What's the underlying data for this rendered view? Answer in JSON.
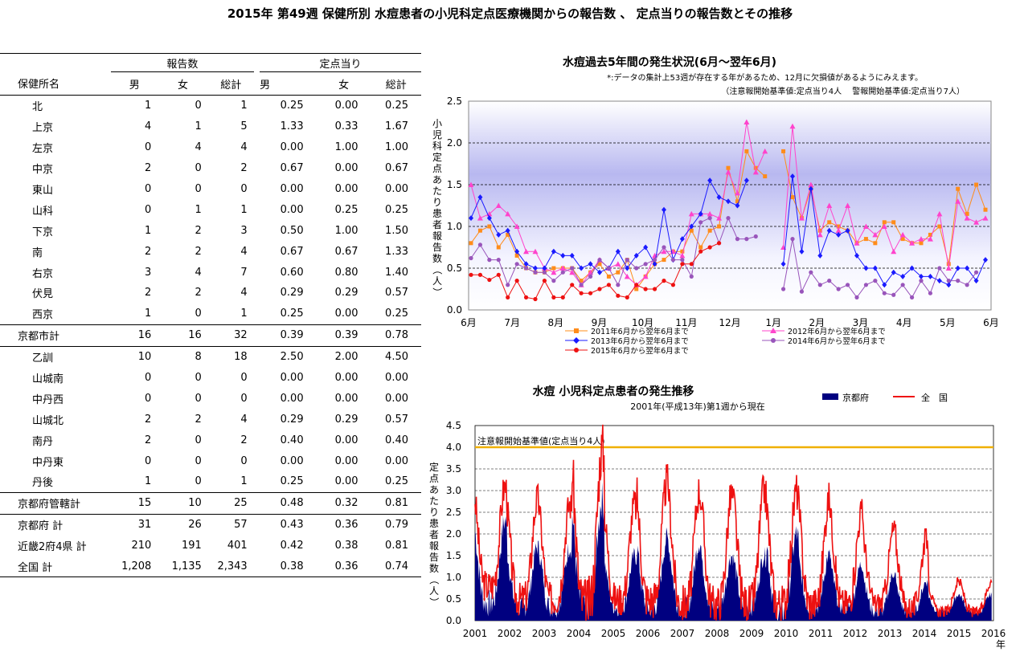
{
  "title": "2015年 第49週 保健所別 水痘患者の小児科定点医療機関からの報告数 、 定点当りの報告数とその推移",
  "table": {
    "group_headers": {
      "reports": "報告数",
      "per_sentinel": "定点当り"
    },
    "columns": [
      "保健所名",
      "男",
      "女",
      "総計",
      "男",
      "女",
      "総計"
    ],
    "rows": [
      {
        "name": "北",
        "values": [
          "1",
          "0",
          "1",
          "0.25",
          "0.00",
          "0.25"
        ],
        "kind": "sub"
      },
      {
        "name": "上京",
        "values": [
          "4",
          "1",
          "5",
          "1.33",
          "0.33",
          "1.67"
        ],
        "kind": "sub"
      },
      {
        "name": "左京",
        "values": [
          "0",
          "4",
          "4",
          "0.00",
          "1.00",
          "1.00"
        ],
        "kind": "sub"
      },
      {
        "name": "中京",
        "values": [
          "2",
          "0",
          "2",
          "0.67",
          "0.00",
          "0.67"
        ],
        "kind": "sub"
      },
      {
        "name": "東山",
        "values": [
          "0",
          "0",
          "0",
          "0.00",
          "0.00",
          "0.00"
        ],
        "kind": "sub"
      },
      {
        "name": "山科",
        "values": [
          "0",
          "1",
          "1",
          "0.00",
          "0.25",
          "0.25"
        ],
        "kind": "sub"
      },
      {
        "name": "下京",
        "values": [
          "1",
          "2",
          "3",
          "0.50",
          "1.00",
          "1.50"
        ],
        "kind": "sub"
      },
      {
        "name": "南",
        "values": [
          "2",
          "2",
          "4",
          "0.67",
          "0.67",
          "1.33"
        ],
        "kind": "sub"
      },
      {
        "name": "右京",
        "values": [
          "3",
          "4",
          "7",
          "0.60",
          "0.80",
          "1.40"
        ],
        "kind": "sub"
      },
      {
        "name": "伏見",
        "values": [
          "2",
          "2",
          "4",
          "0.29",
          "0.29",
          "0.57"
        ],
        "kind": "sub"
      },
      {
        "name": "西京",
        "values": [
          "1",
          "0",
          "1",
          "0.25",
          "0.00",
          "0.25"
        ],
        "kind": "sub"
      },
      {
        "name": "京都市計",
        "values": [
          "16",
          "16",
          "32",
          "0.39",
          "0.39",
          "0.78"
        ],
        "kind": "total"
      },
      {
        "name": "乙訓",
        "values": [
          "10",
          "8",
          "18",
          "2.50",
          "2.00",
          "4.50"
        ],
        "kind": "sub"
      },
      {
        "name": "山城南",
        "values": [
          "0",
          "0",
          "0",
          "0.00",
          "0.00",
          "0.00"
        ],
        "kind": "sub"
      },
      {
        "name": "中丹西",
        "values": [
          "0",
          "0",
          "0",
          "0.00",
          "0.00",
          "0.00"
        ],
        "kind": "sub"
      },
      {
        "name": "山城北",
        "values": [
          "2",
          "2",
          "4",
          "0.29",
          "0.29",
          "0.57"
        ],
        "kind": "sub"
      },
      {
        "name": "南丹",
        "values": [
          "2",
          "0",
          "2",
          "0.40",
          "0.00",
          "0.40"
        ],
        "kind": "sub"
      },
      {
        "name": "中丹東",
        "values": [
          "0",
          "0",
          "0",
          "0.00",
          "0.00",
          "0.00"
        ],
        "kind": "sub"
      },
      {
        "name": "丹後",
        "values": [
          "1",
          "0",
          "1",
          "0.25",
          "0.00",
          "0.25"
        ],
        "kind": "sub"
      },
      {
        "name": "京都府管轄計",
        "values": [
          "15",
          "10",
          "25",
          "0.48",
          "0.32",
          "0.81"
        ],
        "kind": "total"
      },
      {
        "name": "京都府 計",
        "values": [
          "31",
          "26",
          "57",
          "0.43",
          "0.36",
          "0.79"
        ],
        "kind": "grand"
      },
      {
        "name": "近畿2府4県 計",
        "values": [
          "210",
          "191",
          "401",
          "0.42",
          "0.38",
          "0.81"
        ],
        "kind": "grand"
      },
      {
        "name": "全国 計",
        "values": [
          "1,208",
          "1,135",
          "2,343",
          "0.38",
          "0.36",
          "0.74"
        ],
        "kind": "last"
      }
    ]
  },
  "chart_data": [
    {
      "type": "line",
      "title": "水痘過去5年間の発生状況(6月～翌年6月)",
      "note1": "*:データの集計上53週が存在する年があるため、12月に欠損値があるようにみえます。",
      "note2": "（注意報開始基準値:定点当り4人　 警報開始基準値:定点当り7人）",
      "ylabel": "小児科定点あたり患者報告数（人）",
      "ylim": [
        0,
        2.5
      ],
      "yticks": [
        "0.0",
        "0.5",
        "1.0",
        "1.5",
        "2.0",
        "2.5"
      ],
      "xticks": [
        "6月",
        "7月",
        "8月",
        "9月",
        "10月",
        "11月",
        "12月",
        "1月",
        "2月",
        "3月",
        "4月",
        "5月",
        "6月"
      ],
      "series": [
        {
          "name": "2011年6月から翌年6月まで",
          "color": "#ff8c1a",
          "marker": "square",
          "values": [
            0.8,
            0.95,
            1.0,
            0.75,
            0.9,
            0.65,
            0.5,
            0.45,
            0.45,
            0.5,
            0.5,
            0.5,
            0.35,
            0.45,
            0.55,
            0.4,
            0.45,
            0.6,
            0.25,
            0.4,
            0.55,
            0.6,
            0.7,
            0.7,
            0.95,
            0.75,
            0.95,
            1.0,
            1.7,
            1.3,
            1.9,
            1.7,
            1.6,
            null,
            1.9,
            1.35,
            1.1,
            1.45,
            0.95,
            1.05,
            1.0,
            0.95,
            0.8,
            0.85,
            0.8,
            1.05,
            1.05,
            0.85,
            0.8,
            0.8,
            0.9,
            1.0,
            0.55,
            1.45,
            1.15,
            1.5,
            1.2
          ]
        },
        {
          "name": "2012年6月から翌年6月まで",
          "color": "#ff44cc",
          "marker": "triangle",
          "values": [
            1.5,
            1.1,
            1.15,
            1.25,
            1.15,
            1.0,
            0.7,
            0.7,
            0.5,
            0.45,
            0.5,
            0.45,
            0.3,
            0.45,
            0.6,
            0.5,
            0.55,
            0.4,
            0.3,
            0.4,
            0.65,
            0.7,
            0.7,
            0.65,
            1.15,
            1.15,
            1.15,
            1.1,
            1.65,
            1.4,
            2.25,
            1.65,
            1.9,
            null,
            0.75,
            2.2,
            1.1,
            1.5,
            0.9,
            1.25,
            0.95,
            1.25,
            0.8,
            1.0,
            0.9,
            1.0,
            0.7,
            0.9,
            0.8,
            0.85,
            0.85,
            1.15,
            0.5,
            1.3,
            1.1,
            1.05,
            1.1
          ]
        },
        {
          "name": "2013年6月から翌年6月まで",
          "color": "#1a1aff",
          "marker": "diamond",
          "values": [
            1.1,
            1.35,
            1.1,
            0.9,
            0.95,
            0.7,
            0.55,
            0.5,
            0.5,
            0.7,
            0.65,
            0.65,
            0.5,
            0.55,
            0.45,
            0.5,
            0.7,
            0.5,
            0.65,
            0.75,
            0.55,
            1.2,
            0.6,
            0.85,
            1.0,
            1.15,
            1.55,
            1.35,
            1.3,
            1.25,
            1.55,
            null,
            null,
            null,
            0.55,
            1.6,
            0.7,
            1.45,
            0.65,
            0.95,
            0.9,
            0.95,
            0.65,
            0.5,
            0.5,
            0.3,
            0.45,
            0.4,
            0.5,
            0.4,
            0.4,
            0.35,
            0.3,
            0.5,
            0.5,
            0.35,
            0.6
          ]
        },
        {
          "name": "2014年6月から翌年6月まで",
          "color": "#9955bb",
          "marker": "circle",
          "values": [
            0.62,
            0.78,
            0.6,
            0.6,
            0.3,
            0.55,
            0.5,
            0.45,
            0.45,
            0.35,
            0.45,
            0.5,
            0.3,
            0.4,
            0.6,
            0.5,
            0.3,
            0.6,
            0.5,
            0.55,
            0.6,
            0.75,
            0.6,
            0.6,
            0.4,
            1.05,
            1.1,
            0.8,
            1.1,
            0.85,
            0.85,
            0.88,
            null,
            null,
            0.25,
            0.85,
            0.22,
            0.45,
            0.3,
            0.35,
            0.25,
            0.3,
            0.15,
            0.3,
            0.35,
            0.2,
            0.18,
            0.3,
            0.15,
            0.35,
            0.2,
            0.5,
            0.35,
            0.35,
            0.3,
            0.45,
            null
          ]
        },
        {
          "name": "2015年6月から翌年6月まで",
          "color": "#ee1111",
          "marker": "circle",
          "values": [
            0.42,
            0.42,
            0.36,
            0.42,
            0.15,
            0.35,
            0.15,
            0.13,
            0.35,
            0.15,
            0.15,
            0.3,
            0.2,
            0.2,
            0.25,
            0.3,
            0.17,
            0.15,
            0.3,
            0.25,
            0.25,
            0.35,
            0.3,
            0.55,
            0.55,
            0.7,
            0.75,
            0.8
          ]
        }
      ]
    },
    {
      "type": "area",
      "title": "水痘 小児科定点患者の発生推移",
      "subtitle": "2001年(平成13年)第1週から現在",
      "ylabel": "定点あたり患者報告数（人）",
      "ylim": [
        0,
        4.5
      ],
      "yticks": [
        "0.0",
        "0.5",
        "1.0",
        "1.5",
        "2.0",
        "2.5",
        "3.0",
        "3.5",
        "4.0",
        "4.5"
      ],
      "xticks": [
        "2001",
        "2002",
        "2003",
        "2004",
        "2005",
        "2006",
        "2007",
        "2008",
        "2009",
        "2010",
        "2011",
        "2012",
        "2013",
        "2014",
        "2015",
        "2016"
      ],
      "xunit": "年",
      "threshold": {
        "value": 4.0,
        "label": "注意報開始基準値(定点当り4人)",
        "color": "#f0b000"
      },
      "series": [
        {
          "name": "京都府",
          "color": "#000080",
          "type": "area",
          "peaks": [
            2.3,
            1.7,
            1.7,
            2.8,
            1.5,
            1.9,
            1.8,
            1.5,
            1.5,
            2.0,
            1.5,
            1.3,
            1.1,
            0.9,
            0.6
          ],
          "troughs": [
            0.4,
            0.3,
            0.3,
            0.3,
            0.3,
            0.3,
            0.3,
            0.3,
            0.3,
            0.2,
            0.3,
            0.3,
            0.2,
            0.2,
            0.2
          ]
        },
        {
          "name": "全　国",
          "color": "#ee1111",
          "type": "line",
          "peaks": [
            3.1,
            2.8,
            2.7,
            4.0,
            2.7,
            3.2,
            3.0,
            2.9,
            3.0,
            3.0,
            2.8,
            2.5,
            2.1,
            1.9,
            0.9
          ],
          "troughs": [
            0.8,
            0.5,
            0.5,
            0.4,
            0.5,
            0.5,
            0.4,
            0.4,
            0.4,
            0.4,
            0.4,
            0.4,
            0.4,
            0.3,
            0.2
          ]
        }
      ]
    }
  ]
}
